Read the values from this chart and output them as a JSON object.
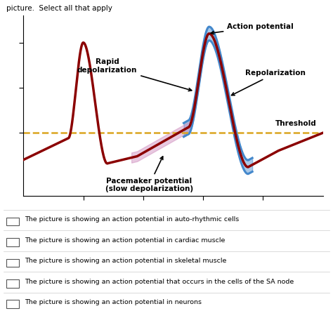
{
  "title": "picture.  Select all that apply",
  "background_color": "#ffffff",
  "threshold_color": "#DAA520",
  "dark_red_color": "#8B0000",
  "blue_color": "#4488CC",
  "pink_color": "#CC88BB",
  "checkboxes": [
    "The picture is showing an action potential in auto-rhythmic cells",
    "The picture is showing an action potential in cardiac muscle",
    "The picture is showing an action potential in skeletal muscle",
    "The picture is showing an action potential that occurs in the cells of the SA node",
    "The picture is showing an action potential in neurons"
  ]
}
